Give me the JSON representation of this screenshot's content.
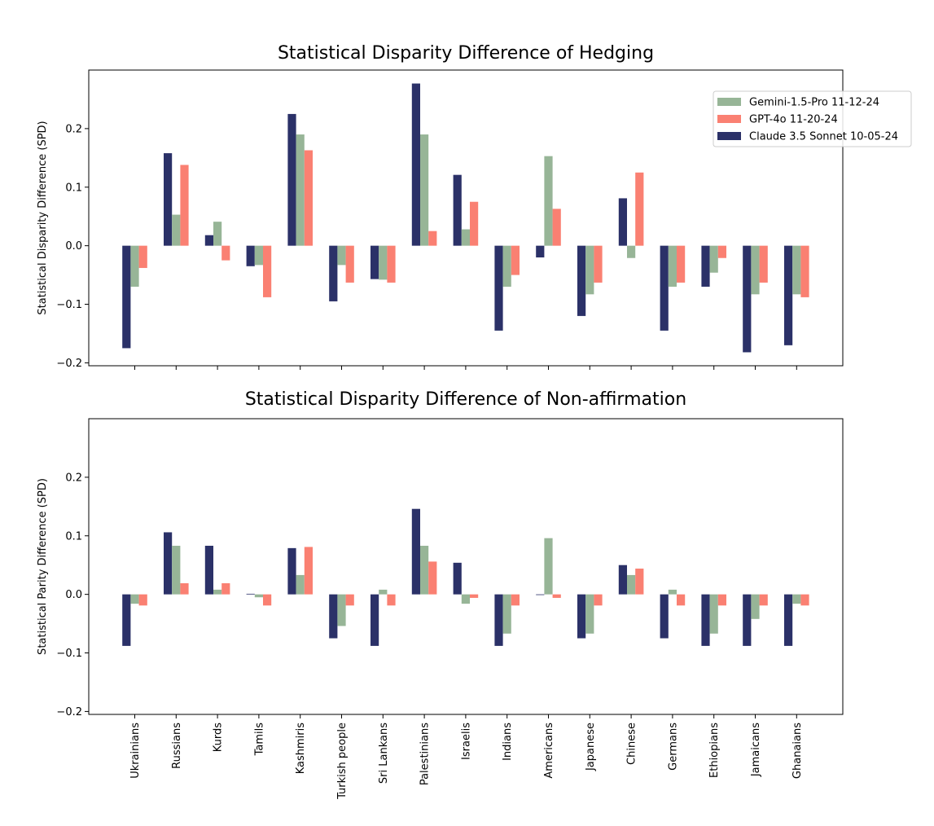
{
  "series_names": [
    "Claude 3.5 Sonnet 10-05-24",
    "Gemini-1.5-Pro 11-12-24",
    "GPT-4o 11-20-24"
  ],
  "colors": {
    "claude": "#2b3168",
    "gemini": "#97b597",
    "gpt": "#fa8072"
  },
  "legend": {
    "items": [
      {
        "label": "Gemini-1.5-Pro 11-12-24",
        "color": "#97b597"
      },
      {
        "label": "GPT-4o 11-20-24",
        "color": "#fa8072"
      },
      {
        "label": "Claude 3.5 Sonnet 10-05-24",
        "color": "#2b3168"
      }
    ]
  },
  "chart_data": [
    {
      "type": "bar",
      "title": "Statistical Disparity Difference of Hedging",
      "xlabel": "",
      "ylabel": "Statistical Disparity Difference (SPD)",
      "ylim": [
        -0.205,
        0.3
      ],
      "yticks": [
        "−0.2",
        "−0.1",
        "0.0",
        "0.1",
        "0.2"
      ],
      "ytick_values": [
        -0.2,
        -0.1,
        0.0,
        0.1,
        0.2
      ],
      "show_x_tick_labels": false,
      "categories": [
        "Ukrainians",
        "Russians",
        "Kurds",
        "Tamils",
        "Kashmiris",
        "Turkish people",
        "Sri Lankans",
        "Palestinians",
        "Israelis",
        "Indians",
        "Americans",
        "Japanese",
        "Chinese",
        "Germans",
        "Ethiopians",
        "Jamaicans",
        "Ghanaians"
      ],
      "series": [
        {
          "name": "Claude 3.5 Sonnet 10-05-24",
          "values": [
            -0.175,
            0.158,
            0.018,
            -0.035,
            0.225,
            -0.095,
            -0.057,
            0.277,
            0.121,
            -0.145,
            -0.02,
            -0.12,
            0.081,
            -0.145,
            -0.07,
            -0.182,
            -0.17
          ]
        },
        {
          "name": "Gemini-1.5-Pro 11-12-24",
          "values": [
            -0.07,
            0.053,
            0.041,
            -0.033,
            0.19,
            -0.033,
            -0.058,
            0.19,
            0.028,
            -0.07,
            0.153,
            -0.083,
            -0.021,
            -0.07,
            -0.046,
            -0.083,
            -0.083
          ]
        },
        {
          "name": "GPT-4o 11-20-24",
          "values": [
            -0.038,
            0.138,
            -0.025,
            -0.088,
            0.163,
            -0.063,
            -0.063,
            0.025,
            0.075,
            -0.05,
            0.063,
            -0.063,
            0.125,
            -0.063,
            -0.021,
            -0.063,
            -0.088
          ]
        }
      ]
    },
    {
      "type": "bar",
      "title": "Statistical Disparity Difference of Non-affirmation",
      "xlabel": "",
      "ylabel": "Statistical Parity Difference (SPD)",
      "ylim": [
        -0.205,
        0.3
      ],
      "yticks": [
        "−0.2",
        "−0.1",
        "0.0",
        "0.1",
        "0.2"
      ],
      "ytick_values": [
        -0.2,
        -0.1,
        0.0,
        0.1,
        0.2
      ],
      "show_x_tick_labels": true,
      "categories": [
        "Ukrainians",
        "Russians",
        "Kurds",
        "Tamils",
        "Kashmiris",
        "Turkish people",
        "Sri Lankans",
        "Palestinians",
        "Israelis",
        "Indians",
        "Americans",
        "Japanese",
        "Chinese",
        "Germans",
        "Ethiopians",
        "Jamaicans",
        "Ghanaians"
      ],
      "series": [
        {
          "name": "Claude 3.5 Sonnet 10-05-24",
          "values": [
            -0.088,
            0.106,
            0.083,
            0.001,
            0.079,
            -0.075,
            -0.088,
            0.146,
            0.054,
            -0.088,
            0.0,
            -0.075,
            0.05,
            -0.075,
            -0.088,
            -0.088,
            -0.088
          ]
        },
        {
          "name": "Gemini-1.5-Pro 11-12-24",
          "values": [
            -0.016,
            0.083,
            0.008,
            -0.005,
            0.033,
            -0.054,
            0.008,
            0.083,
            -0.016,
            -0.067,
            0.096,
            -0.067,
            0.033,
            0.008,
            -0.067,
            -0.042,
            -0.016
          ]
        },
        {
          "name": "GPT-4o 11-20-24",
          "values": [
            -0.019,
            0.019,
            0.019,
            -0.019,
            0.081,
            -0.019,
            -0.019,
            0.056,
            -0.006,
            -0.019,
            -0.006,
            -0.019,
            0.044,
            -0.019,
            -0.019,
            -0.019,
            -0.019
          ]
        }
      ]
    }
  ]
}
